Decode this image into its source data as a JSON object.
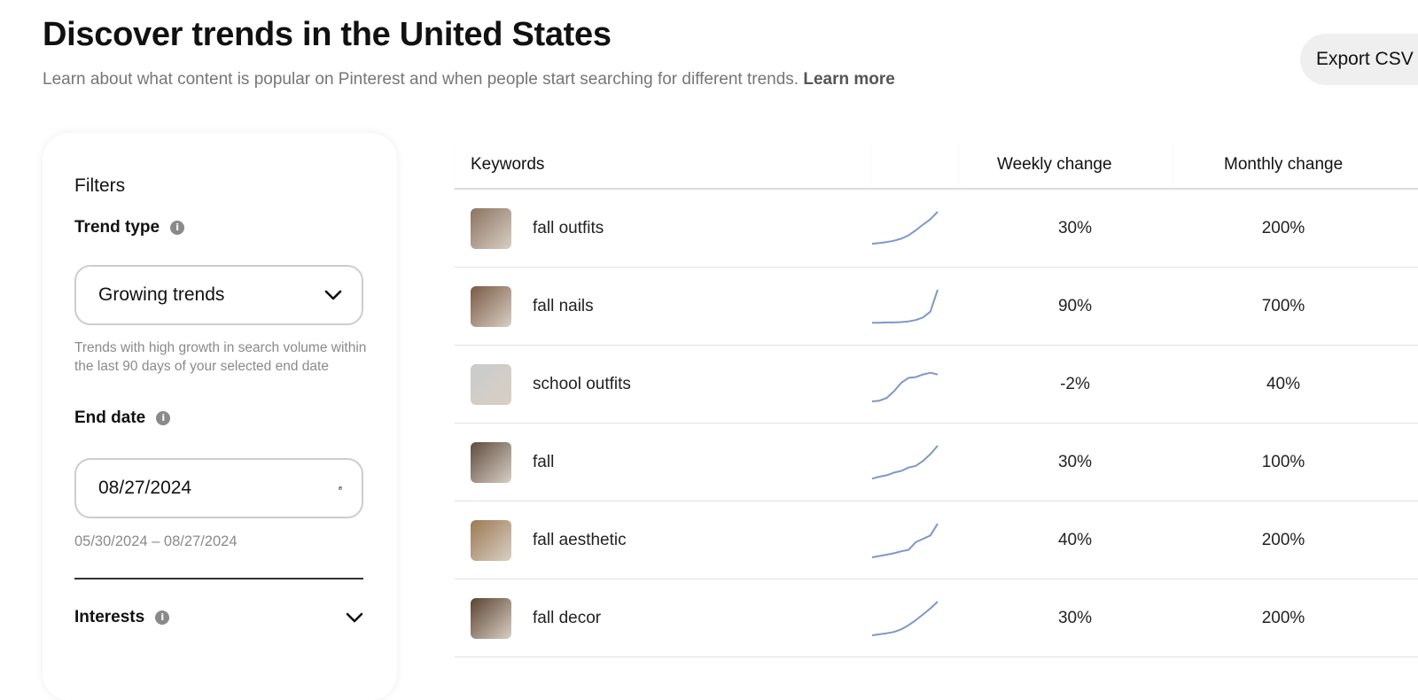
{
  "header": {
    "title": "Discover trends in the United States",
    "subtitle": "Learn about what content is popular on Pinterest and when people start searching for different trends.",
    "learn_more": "Learn more",
    "export_label": "Export CSV"
  },
  "filters": {
    "title": "Filters",
    "trend_type": {
      "label": "Trend type",
      "value": "Growing trends",
      "help": "Trends with high growth in search volume within the last 90 days of your selected end date"
    },
    "end_date": {
      "label": "End date",
      "value": "08/27/2024",
      "range": "05/30/2024 – 08/27/2024"
    },
    "interests": {
      "label": "Interests"
    }
  },
  "table": {
    "headers": {
      "keywords": "Keywords",
      "weekly": "Weekly change",
      "monthly": "Monthly change"
    },
    "accent_color": "#7f97c9",
    "rows": [
      {
        "keyword": "fall outfits",
        "weekly": "30%",
        "monthly": "200%",
        "thumb_color": "#8a7360",
        "trend": [
          0.05,
          0.07,
          0.1,
          0.14,
          0.2,
          0.3,
          0.45,
          0.62,
          0.78,
          1.0
        ]
      },
      {
        "keyword": "fall nails",
        "weekly": "90%",
        "monthly": "700%",
        "thumb_color": "#7a5a45",
        "trend": [
          0.02,
          0.02,
          0.03,
          0.03,
          0.04,
          0.06,
          0.1,
          0.18,
          0.35,
          1.0
        ]
      },
      {
        "keyword": "school outfits",
        "weekly": "-2%",
        "monthly": "40%",
        "thumb_color": "#c9cbcc",
        "trend": [
          0.0,
          0.02,
          0.1,
          0.3,
          0.55,
          0.7,
          0.72,
          0.8,
          0.85,
          0.8
        ]
      },
      {
        "keyword": "fall",
        "weekly": "30%",
        "monthly": "100%",
        "thumb_color": "#5e4c3e",
        "trend": [
          0.02,
          0.08,
          0.12,
          0.2,
          0.25,
          0.35,
          0.4,
          0.55,
          0.75,
          1.0
        ]
      },
      {
        "keyword": "fall aesthetic",
        "weekly": "40%",
        "monthly": "200%",
        "thumb_color": "#9b7a52",
        "trend": [
          0.0,
          0.04,
          0.08,
          0.12,
          0.18,
          0.22,
          0.45,
          0.55,
          0.65,
          1.0
        ]
      },
      {
        "keyword": "fall decor",
        "weekly": "30%",
        "monthly": "200%",
        "thumb_color": "#5b4332",
        "trend": [
          0.0,
          0.03,
          0.06,
          0.1,
          0.18,
          0.3,
          0.45,
          0.62,
          0.8,
          1.0
        ]
      }
    ]
  },
  "icons": {
    "info": "info-icon",
    "dropdown": "chevron-down-icon",
    "calendar": "calendar-icon"
  }
}
